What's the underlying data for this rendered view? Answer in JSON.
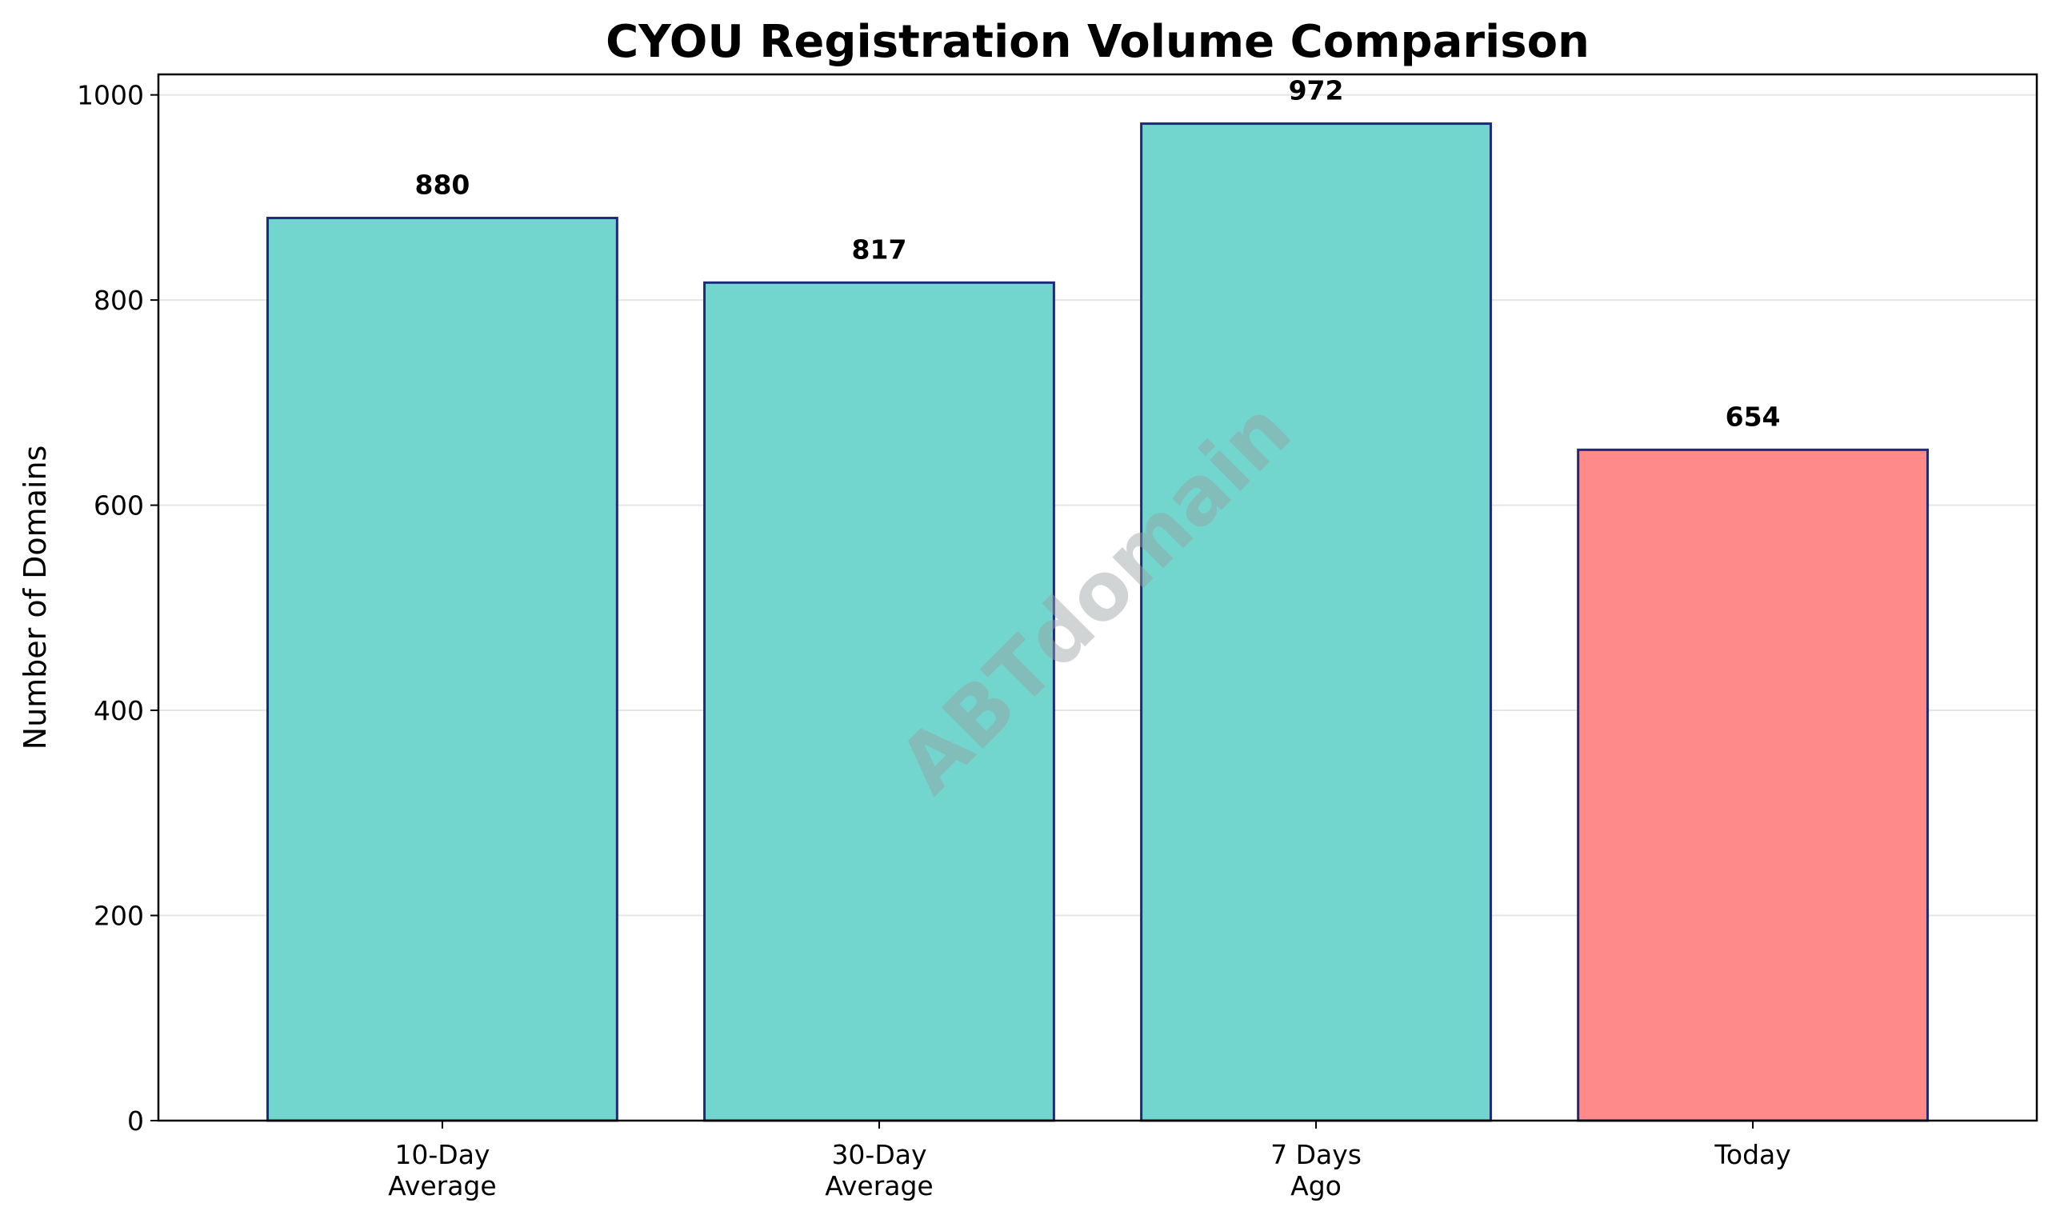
{
  "chart_data": {
    "type": "bar",
    "title": "CYOU Registration Volume Comparison",
    "xlabel": "",
    "ylabel": "Number of Domains",
    "categories": [
      [
        "10-Day",
        "Average"
      ],
      [
        "30-Day",
        "Average"
      ],
      [
        "7 Days",
        "Ago"
      ],
      [
        "Today"
      ]
    ],
    "values": [
      880,
      817,
      972,
      654
    ],
    "data_labels": [
      "880",
      "817",
      "972",
      "654"
    ],
    "ylim": [
      0,
      1020
    ],
    "yticks": [
      0,
      200,
      400,
      600,
      800,
      1000
    ],
    "ytick_labels": [
      "0",
      "200",
      "400",
      "600",
      "800",
      "1000"
    ],
    "grid": "y",
    "colors": {
      "bars": [
        "#72d6cf",
        "#72d6cf",
        "#72d6cf",
        "#ff8a89"
      ],
      "bar_edge": "#1f2a7a",
      "grid": "#e5e5e5"
    },
    "watermark": "ABTdomain"
  }
}
